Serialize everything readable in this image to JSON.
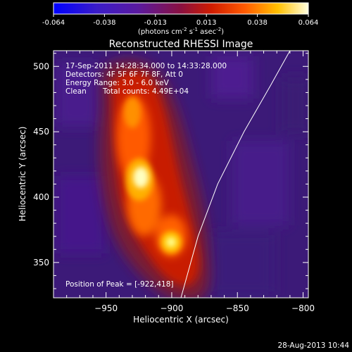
{
  "colorbar": {
    "ticks": [
      "-0.064",
      "-0.038",
      "-0.013",
      "0.013",
      "0.038",
      "0.064"
    ],
    "label_prefix": "(photons cm",
    "label_exp1": "-2",
    "label_mid": " s",
    "label_exp2": "-1",
    "label_mid2": " asec",
    "label_exp3": "-2",
    "label_suffix": ")"
  },
  "chart_data": {
    "type": "heatmap",
    "title": "Reconstructed RHESSI Image",
    "xlabel": "Heliocentric X (arcsec)",
    "ylabel": "Heliocentric Y (arcsec)",
    "xlim": [
      -990,
      -796
    ],
    "ylim": [
      323,
      512
    ],
    "xticks": [
      -950,
      -900,
      -850,
      -800
    ],
    "yticks": [
      350,
      400,
      450,
      500
    ],
    "value_range": [
      -0.064,
      0.064
    ],
    "colormap": "IDL red-temperature",
    "sources": [
      {
        "x": -922,
        "y": 418,
        "value": 0.064
      },
      {
        "x": -902,
        "y": 368,
        "value": 0.055
      }
    ],
    "peak": {
      "x": -922,
      "y": 418
    },
    "annotations": [
      "17-Sep-2011 14:28:34.000 to 14:33:28.000",
      "Detectors: 4F 5F 6F 7F 8F, Att 0",
      "Energy Range: 3.0 - 6.0 keV",
      "Clean",
      "Total counts: 4.49E+04"
    ],
    "peak_label": "Position of Peak = [-922,418]",
    "limb_curve": [
      [
        -893,
        323
      ],
      [
        -880,
        370
      ],
      [
        -865,
        410
      ],
      [
        -845,
        450
      ],
      [
        -825,
        485
      ],
      [
        -810,
        512
      ]
    ]
  },
  "timestamp": "28-Aug-2013 10:44"
}
